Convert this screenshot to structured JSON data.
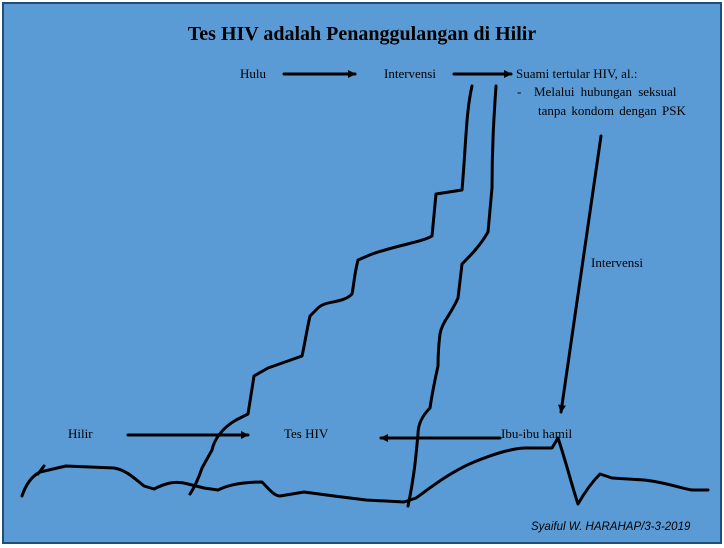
{
  "title": "Tes HIV adalah Penanggulangan di Hilir",
  "labels": {
    "hulu": "Hulu",
    "intervensi_top": "Intervensi",
    "suami": "Suami tertular HIV, al.:",
    "bullet_dash": "-",
    "bullet_line1": "Melalui hubungan seksual",
    "bullet_line2": "tanpa kondom dengan PSK",
    "intervensi_right": "Intervensi",
    "hilir": "Hilir",
    "tes_hiv": "Tes HIV",
    "ibu_hamil": "Ibu-ibu hamil"
  },
  "credit": "Syaiful W. HARAHAP/3-3-2019",
  "colors": {
    "background": "#5b9bd5",
    "border": "#1f4e79",
    "ink": "#000000"
  }
}
